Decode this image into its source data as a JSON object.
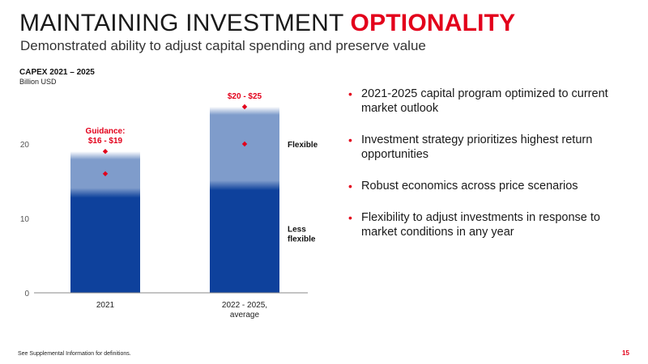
{
  "slide": {
    "title_main": "MAINTAINING INVESTMENT ",
    "title_accent": "OPTIONALITY",
    "subtitle": "Demonstrated ability to adjust capital spending and preserve value",
    "footnote": "See Supplemental Information for definitions.",
    "page_number": "15"
  },
  "bullets": [
    "2021-2025 capital program optimized to current market outlook",
    "Investment strategy prioritizes highest return opportunities",
    "Robust economics across price scenarios",
    "Flexibility to adjust investments in response to market conditions in any year"
  ],
  "colors": {
    "accent": "#e3001b",
    "dark_blue": "#0e419c",
    "light_blue": "#7f9ccb",
    "axis": "#888888"
  },
  "chart_data": {
    "type": "bar",
    "title": "CAPEX 2021 – 2025",
    "ylabel": "Billion USD",
    "ylim": [
      0,
      25
    ],
    "yticks": [
      0,
      10,
      20
    ],
    "categories": [
      "2021",
      "2022 - 2025, average"
    ],
    "category_lines": [
      [
        "2021"
      ],
      [
        "2022 - 2025,",
        "average"
      ]
    ],
    "series": [
      {
        "name": "Less flexible",
        "values": [
          13,
          14
        ]
      },
      {
        "name": "Flexible",
        "values": [
          6,
          11
        ]
      }
    ],
    "range_labels": [
      {
        "lines": [
          "Guidance:",
          "$16 - $19"
        ],
        "low": 16,
        "high": 19
      },
      {
        "lines": [
          "$20 - $25"
        ],
        "low": 20,
        "high": 25
      }
    ],
    "segment_labels": [
      {
        "lines": [
          "Flexible"
        ],
        "value": 20
      },
      {
        "lines": [
          "Less",
          "flexible"
        ],
        "value": 8
      }
    ]
  }
}
